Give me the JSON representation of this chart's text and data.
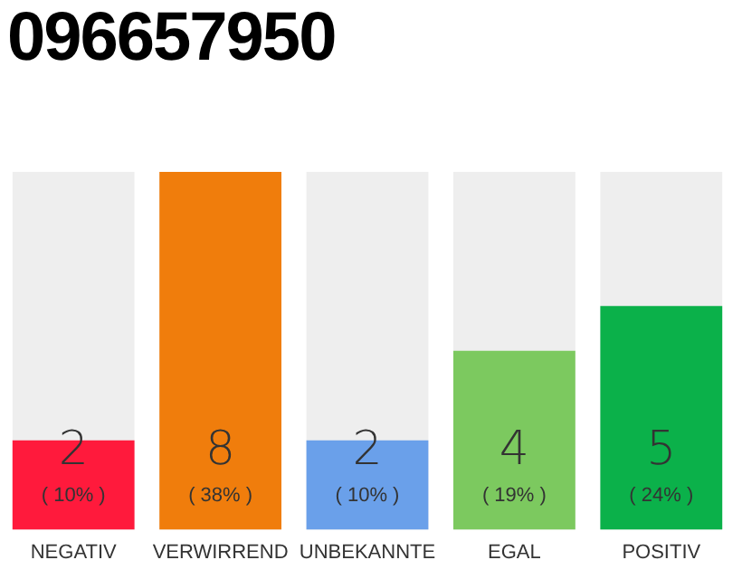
{
  "chart_data": {
    "type": "bar",
    "title": "096657950",
    "categories": [
      "NEGATIV",
      "VERWIRREND",
      "UNBEKANNTE",
      "EGAL",
      "POSITIV"
    ],
    "values": [
      2,
      8,
      2,
      4,
      5
    ],
    "colors": [
      "#ff1a3c",
      "#f07d0c",
      "#6aa0ea",
      "#7cc95f",
      "#0bb14a"
    ],
    "data_labels": true,
    "annotations": [
      "( 10% )",
      "( 38% )",
      "( 10% )",
      "( 19% )",
      "( 24% )"
    ],
    "tick_labels": "x",
    "grid": false,
    "legend": false
  }
}
